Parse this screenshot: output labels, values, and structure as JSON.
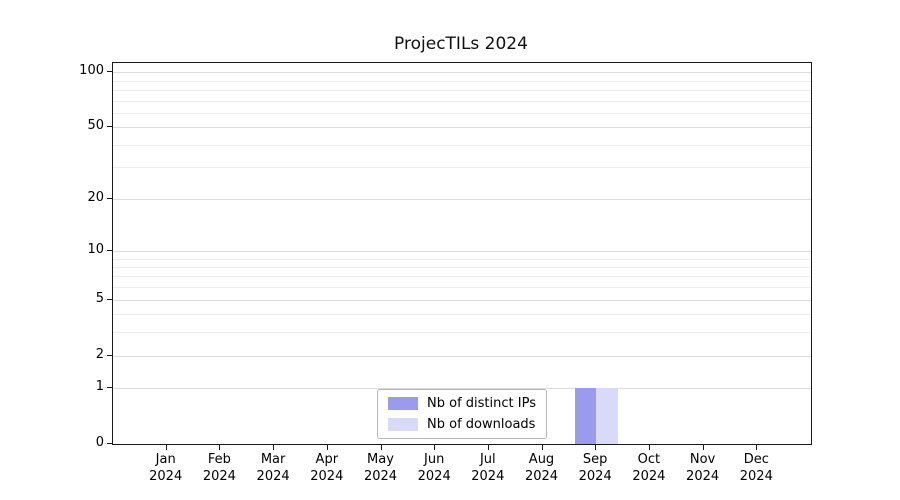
{
  "chart_data": {
    "type": "bar",
    "title": "ProjecTILs 2024",
    "categories": [
      "Jan 2024",
      "Feb 2024",
      "Mar 2024",
      "Apr 2024",
      "May 2024",
      "Jun 2024",
      "Jul 2024",
      "Aug 2024",
      "Sep 2024",
      "Oct 2024",
      "Nov 2024",
      "Dec 2024"
    ],
    "series": [
      {
        "name": "Nb of distinct IPs",
        "color": "#9b9bee",
        "values": [
          0,
          0,
          0,
          0,
          0,
          0,
          0,
          0,
          1,
          0,
          0,
          0
        ]
      },
      {
        "name": "Nb of downloads",
        "color": "#d9d9f8",
        "values": [
          0,
          0,
          0,
          0,
          0,
          0,
          0,
          0,
          1,
          0,
          0,
          0
        ]
      }
    ],
    "xlabel": "",
    "ylabel": "",
    "yscale": "log1p",
    "ylim": [
      0,
      100
    ],
    "yticks": [
      0,
      1,
      2,
      5,
      10,
      20,
      50,
      100
    ],
    "ytick_labels": [
      "0",
      "1",
      "2",
      "5",
      "10",
      "20",
      "50",
      "100"
    ],
    "yticks_minor": [
      3,
      4,
      6,
      7,
      8,
      9,
      30,
      40,
      60,
      70,
      80,
      90
    ],
    "grid": "horizontal",
    "legend": {
      "position": "bottom-center-inside",
      "labels": [
        "Nb of distinct IPs",
        "Nb of downloads"
      ]
    }
  },
  "colors": {
    "background": "#ffffff",
    "spine": "#1a1a1a",
    "grid_major": "#dcdcdc",
    "grid_minor": "#efefef",
    "bar_distinct_ips": "#9b9bee",
    "bar_downloads": "#d9d9f8"
  }
}
